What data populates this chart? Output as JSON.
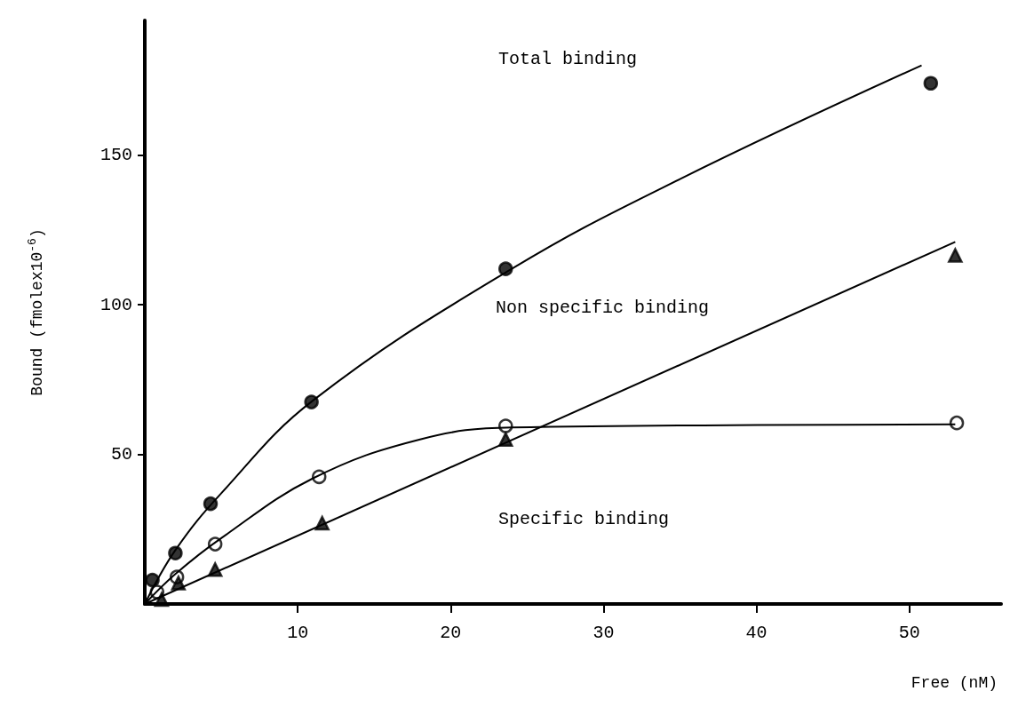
{
  "chart_data": {
    "type": "scatter",
    "xlabel": "Free (nM)",
    "ylabel": "Bound (fmolex10$^{-6}$)",
    "xlim": [
      0,
      56
    ],
    "xticks": [
      10,
      20,
      30,
      40,
      50
    ],
    "ylim": [
      0,
      195
    ],
    "yticks": [
      50,
      100,
      150
    ],
    "grid": false,
    "series": [
      {
        "marker": "circle",
        "color": "#000000",
        "x": [
          0.5,
          2,
          4.3,
          10.9,
          23.6,
          51.4
        ],
        "values": [
          8,
          17,
          33.5,
          67.5,
          112,
          174
        ]
      },
      {
        "marker": "circle",
        "color": "#000000",
        "x": [
          0.8,
          2.1,
          4.6,
          11.4,
          23.6,
          53.1
        ],
        "values": [
          4,
          9,
          20,
          42.5,
          59.5,
          60.5
        ]
      },
      {
        "marker": "triangle",
        "color": "#000000",
        "x": [
          1.1,
          2.2,
          4.6,
          11.6,
          23.6,
          53
        ],
        "values": [
          1.5,
          7,
          11.5,
          27,
          55,
          116.5
        ]
      },
      {
        "type": "line",
        "marker": "none",
        "color": "#000000",
        "x": [
          0,
          2,
          5,
          11,
          24,
          35,
          50.8
        ],
        "values": [
          0,
          18,
          37,
          68,
          112,
          142,
          180
        ]
      },
      {
        "type": "line",
        "marker": "none",
        "color": "#000000",
        "x": [
          0,
          2,
          5,
          11,
          18,
          24,
          53
        ],
        "values": [
          0,
          10,
          22,
          42,
          55,
          59,
          60
        ]
      },
      {
        "type": "line",
        "marker": "none",
        "color": "#000000",
        "x": [
          0,
          53
        ],
        "values": [
          0,
          121
        ]
      }
    ],
    "annotations": [
      "Total binding",
      "Non specific binding",
      "Specific binding"
    ]
  }
}
